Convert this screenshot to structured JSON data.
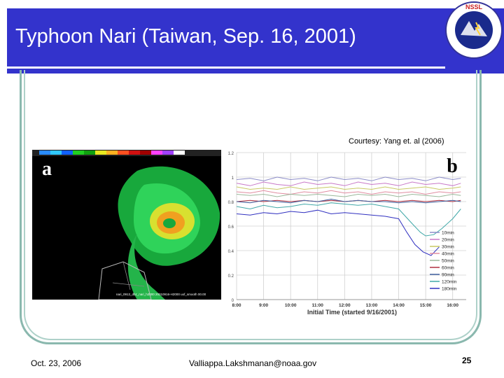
{
  "slide": {
    "title": "Typhoon Nari (Taiwan, Sep. 16, 2001)",
    "courtesy": "Courtesy: Yang et. al (2006)",
    "colors": {
      "title_bar": "#3333cc",
      "frame": "#8ab8ae"
    }
  },
  "logo": {
    "text_top": "NSSL",
    "text_ring": "NATIONAL SEVERE STORMS LABORATORY",
    "icon": "nssl-logo"
  },
  "radar_panel": {
    "panel_label": "a",
    "caption": "nari_0913_dbz_nari_h2000 20010916-H2000 uof_smooth 00.00"
  },
  "chart_data": {
    "type": "line",
    "panel_label": "b",
    "xlabel": "Initial Time (started 9/16/2001)",
    "ylabel": "",
    "x_ticks": [
      "8:00",
      "9:00",
      "10:00",
      "11:00",
      "12:00",
      "13:00",
      "14:00",
      "15:00",
      "16:00"
    ],
    "x_range": [
      8.0,
      16.5
    ],
    "ylim": [
      0,
      1.2
    ],
    "y_ticks": [
      "0",
      "0.2",
      "0.4",
      "0.6",
      "0.8",
      "1",
      "1.2"
    ],
    "grid": true,
    "legend_position": "right",
    "series": [
      {
        "name": "10min",
        "color": "#8c8cc8",
        "x": [
          8.0,
          8.5,
          9.0,
          9.5,
          10.0,
          10.5,
          11.0,
          11.5,
          12.0,
          12.5,
          13.0,
          13.5,
          14.0,
          14.5,
          15.0,
          15.5,
          16.0,
          16.3
        ],
        "y": [
          0.98,
          0.99,
          0.97,
          1.0,
          0.98,
          0.99,
          0.97,
          1.0,
          0.98,
          0.99,
          0.97,
          1.0,
          0.98,
          0.99,
          0.97,
          1.0,
          0.98,
          0.99
        ]
      },
      {
        "name": "20min",
        "color": "#c878c8",
        "x": [
          8.0,
          8.5,
          9.0,
          9.5,
          10.0,
          10.5,
          11.0,
          11.5,
          12.0,
          12.5,
          13.0,
          13.5,
          14.0,
          14.5,
          15.0,
          15.5,
          16.0,
          16.3
        ],
        "y": [
          0.95,
          0.93,
          0.96,
          0.94,
          0.93,
          0.96,
          0.94,
          0.95,
          0.93,
          0.96,
          0.94,
          0.95,
          0.93,
          0.96,
          0.94,
          0.95,
          0.93,
          0.95
        ]
      },
      {
        "name": "30min",
        "color": "#c8c864",
        "x": [
          8.0,
          8.5,
          9.0,
          9.5,
          10.0,
          10.5,
          11.0,
          11.5,
          12.0,
          12.5,
          13.0,
          13.5,
          14.0,
          14.5,
          15.0,
          15.5,
          16.0,
          16.3
        ],
        "y": [
          0.92,
          0.9,
          0.91,
          0.9,
          0.92,
          0.9,
          0.91,
          0.92,
          0.9,
          0.91,
          0.9,
          0.92,
          0.9,
          0.91,
          0.92,
          0.9,
          0.91,
          0.92
        ]
      },
      {
        "name": "40min",
        "color": "#e08ca0",
        "x": [
          8.0,
          8.5,
          9.0,
          9.5,
          10.0,
          10.5,
          11.0,
          11.5,
          12.0,
          12.5,
          13.0,
          13.5,
          14.0,
          14.5,
          15.0,
          15.5,
          16.0,
          16.3
        ],
        "y": [
          0.88,
          0.87,
          0.89,
          0.87,
          0.86,
          0.88,
          0.87,
          0.89,
          0.87,
          0.88,
          0.86,
          0.88,
          0.87,
          0.88,
          0.86,
          0.88,
          0.87,
          0.88
        ]
      },
      {
        "name": "50min",
        "color": "#9ab89a",
        "x": [
          8.0,
          8.5,
          9.0,
          9.5,
          10.0,
          10.5,
          11.0,
          11.5,
          12.0,
          12.5,
          13.0,
          13.5,
          14.0,
          14.5,
          15.0,
          15.5,
          16.0,
          16.3
        ],
        "y": [
          0.86,
          0.85,
          0.86,
          0.84,
          0.86,
          0.85,
          0.86,
          0.85,
          0.84,
          0.86,
          0.85,
          0.86,
          0.84,
          0.86,
          0.85,
          0.84,
          0.86,
          0.85
        ]
      },
      {
        "name": "60min",
        "color": "#b03040",
        "x": [
          8.0,
          8.5,
          9.0,
          9.5,
          10.0,
          10.5,
          11.0,
          11.5,
          12.0,
          12.5,
          13.0,
          13.5,
          14.0,
          14.5,
          15.0,
          15.5,
          16.0,
          16.3
        ],
        "y": [
          0.8,
          0.81,
          0.8,
          0.81,
          0.8,
          0.81,
          0.8,
          0.81,
          0.8,
          0.81,
          0.8,
          0.81,
          0.8,
          0.81,
          0.8,
          0.81,
          0.8,
          0.81
        ]
      },
      {
        "name": "90min",
        "color": "#4060a0",
        "x": [
          8.0,
          8.5,
          9.0,
          9.5,
          10.0,
          10.5,
          11.0,
          11.5,
          12.0,
          12.5,
          13.0,
          13.5,
          14.0,
          14.5,
          15.0,
          15.5,
          16.0,
          16.3
        ],
        "y": [
          0.8,
          0.79,
          0.81,
          0.8,
          0.79,
          0.81,
          0.8,
          0.82,
          0.8,
          0.81,
          0.8,
          0.8,
          0.79,
          0.8,
          0.79,
          0.8,
          0.81,
          0.8
        ]
      },
      {
        "name": "120min",
        "color": "#40a8a8",
        "x": [
          8.0,
          8.5,
          9.0,
          9.5,
          10.0,
          10.5,
          11.0,
          11.5,
          12.0,
          12.5,
          13.0,
          13.5,
          14.0,
          14.5,
          14.8,
          15.0,
          15.3,
          15.6,
          16.0,
          16.3
        ],
        "y": [
          0.76,
          0.74,
          0.77,
          0.75,
          0.76,
          0.78,
          0.77,
          0.79,
          0.78,
          0.77,
          0.78,
          0.76,
          0.74,
          0.62,
          0.55,
          0.52,
          0.53,
          0.58,
          0.66,
          0.74
        ]
      },
      {
        "name": "180min",
        "color": "#3030c0",
        "x": [
          8.0,
          8.5,
          9.0,
          9.5,
          10.0,
          10.5,
          11.0,
          11.5,
          12.0,
          12.5,
          13.0,
          13.5,
          14.0,
          14.3,
          14.6,
          14.9,
          15.2,
          15.5
        ],
        "y": [
          0.7,
          0.69,
          0.71,
          0.7,
          0.72,
          0.71,
          0.73,
          0.7,
          0.71,
          0.7,
          0.69,
          0.68,
          0.66,
          0.55,
          0.45,
          0.39,
          0.36,
          0.43
        ]
      }
    ]
  },
  "footer": {
    "date": "Oct. 23, 2006",
    "email": "Valliappa.Lakshmanan@noaa.gov",
    "page": "25"
  }
}
